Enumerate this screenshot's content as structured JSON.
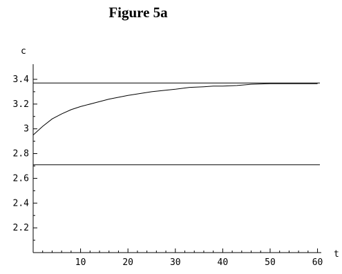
{
  "figure_title": "Figure 5a",
  "chart_data": {
    "type": "line",
    "title": "Figure 5a",
    "xlabel": "t",
    "ylabel": "c",
    "xlim": [
      0,
      60.5
    ],
    "ylim": [
      2.0,
      3.5
    ],
    "xticks": [
      10,
      20,
      30,
      40,
      50,
      60
    ],
    "yticks": [
      2.2,
      2.4,
      2.6,
      2.8,
      3.0,
      3.2,
      3.4
    ],
    "ytick_labels": [
      "2.2",
      "2.4",
      "2.6",
      "2.8",
      "3",
      "3.2",
      "3.4"
    ],
    "grid": false,
    "series": [
      {
        "values_x": [
          0,
          2,
          4,
          6,
          8,
          10,
          13,
          16,
          20,
          25,
          30,
          33,
          36,
          38,
          40,
          43,
          46,
          50,
          55,
          60
        ],
        "values_y": [
          2.95,
          3.02,
          3.08,
          3.12,
          3.155,
          3.18,
          3.21,
          3.24,
          3.27,
          3.3,
          3.32,
          3.335,
          3.34,
          3.345,
          3.345,
          3.35,
          3.36,
          3.365,
          3.365,
          3.365
        ]
      },
      {
        "values_x": [
          0,
          60.5
        ],
        "values_y": [
          3.37,
          3.37
        ]
      },
      {
        "values_x": [
          0,
          60.5
        ],
        "values_y": [
          2.71,
          2.71
        ]
      }
    ]
  }
}
